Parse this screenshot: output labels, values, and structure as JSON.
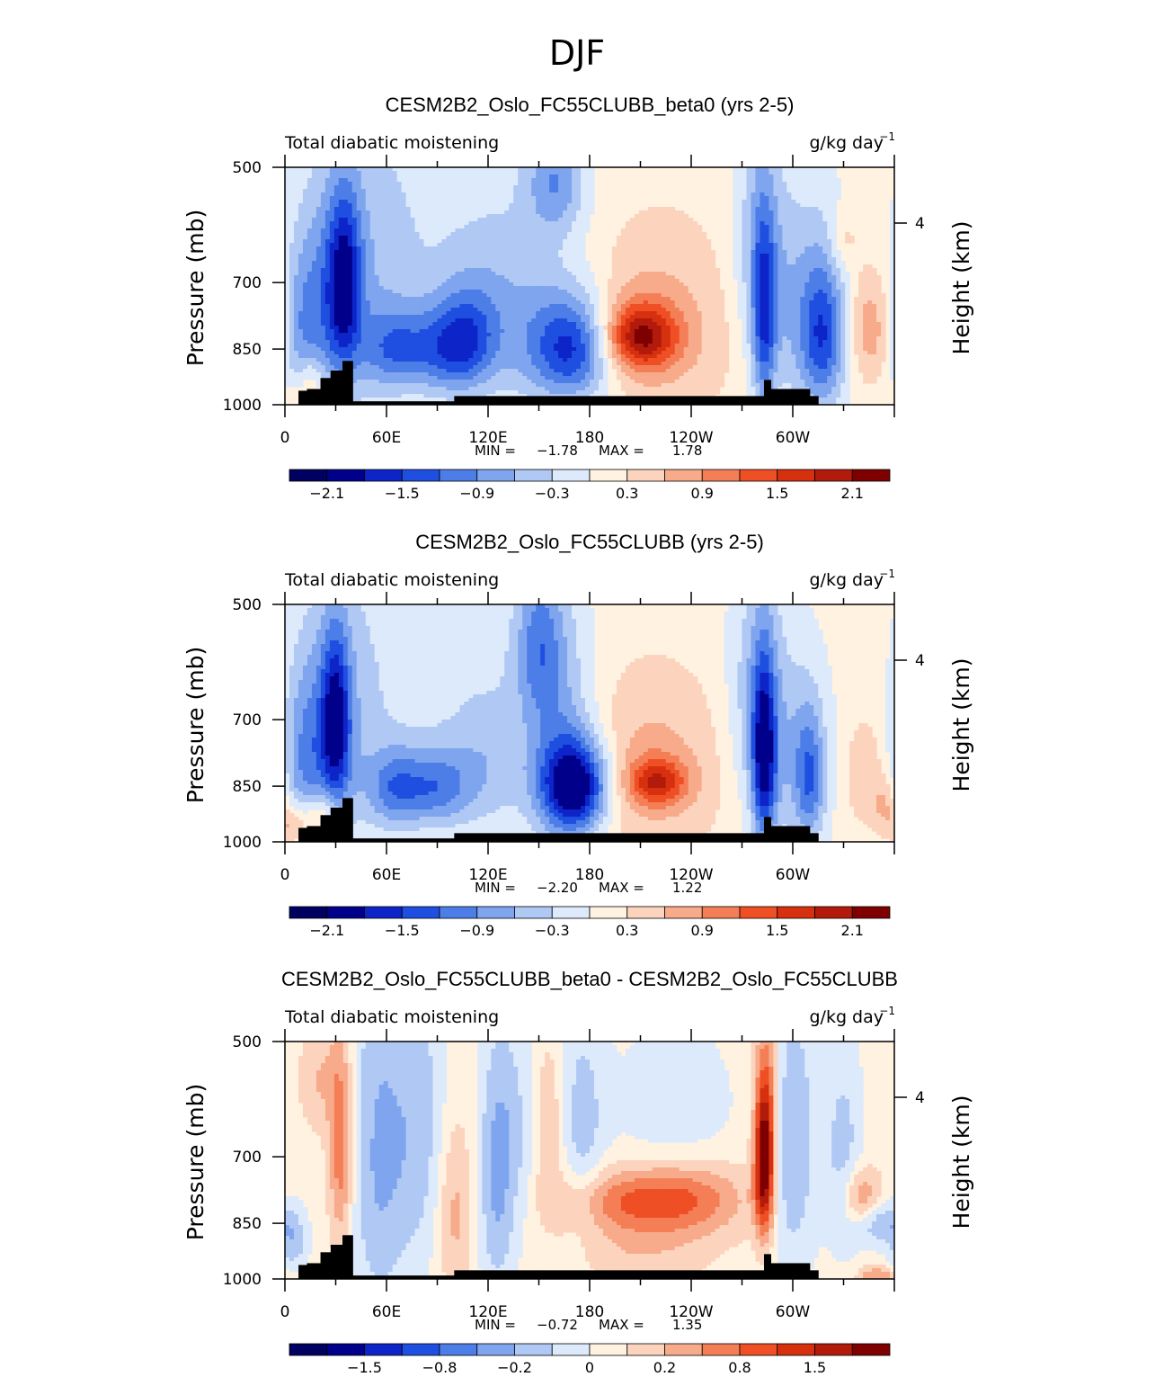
{
  "figure": {
    "title": "DJF"
  },
  "colors": {
    "ocean_bg": "#fff2e1",
    "terrain": "#000000",
    "palette": [
      "#00008b",
      "#0d24c8",
      "#1f4fe0",
      "#4d7ee8",
      "#7fa5ef",
      "#b0c8f4",
      "#ddeafb",
      "#fff2e1",
      "#fcd4be",
      "#f8ab8b",
      "#f47f56",
      "#ef4f24",
      "#d6300f",
      "#b21b0b",
      "#7f0000"
    ]
  },
  "chart_data": [
    {
      "type": "contour",
      "title": "CESM2B2_Oslo_FC55CLUBB_beta0 (yrs 2-5)",
      "left_label": "Total diabatic moistening",
      "units_label": "g/kg day",
      "units_exponent": "−1",
      "ylabel": "Pressure (mb)",
      "ylabel_right": "Height (km)",
      "y_ticks": [
        "500",
        "700",
        "850",
        "1000"
      ],
      "y_tick_values": [
        500,
        700,
        850,
        1000
      ],
      "y_right_ticks": [
        "4"
      ],
      "x_ticks": [
        "0",
        "60E",
        "120E",
        "180",
        "120W",
        "60W"
      ],
      "x_tick_values": [
        0,
        60,
        120,
        180,
        240,
        300
      ],
      "xlim": [
        0,
        360
      ],
      "ylim": [
        1000,
        500
      ],
      "stats_min_label": "MIN =",
      "stats_min": "−1.78",
      "stats_max_label": "MAX =",
      "stats_max": "1.78",
      "colorbar_labels": [
        "−2.1",
        "−1.5",
        "−0.9",
        "−0.3",
        "0.3",
        "0.9",
        "1.5",
        "2.1"
      ],
      "features": [
        {
          "lon": 35,
          "p": 700,
          "v": -1.4,
          "sx": 7,
          "sy": 120
        },
        {
          "lon": 25,
          "p": 750,
          "v": -0.8,
          "sx": 14,
          "sy": 180
        },
        {
          "lon": 10,
          "p": 820,
          "v": -0.6,
          "sx": 8,
          "sy": 150
        },
        {
          "lon": 15,
          "p": 930,
          "v": 0.7,
          "sx": 6,
          "sy": 50
        },
        {
          "lon": 50,
          "p": 660,
          "v": -0.5,
          "sx": 22,
          "sy": 260
        },
        {
          "lon": 65,
          "p": 850,
          "v": -1.0,
          "sx": 14,
          "sy": 70
        },
        {
          "lon": 95,
          "p": 850,
          "v": -1.1,
          "sx": 14,
          "sy": 80
        },
        {
          "lon": 110,
          "p": 820,
          "v": -0.8,
          "sx": 12,
          "sy": 90
        },
        {
          "lon": 135,
          "p": 820,
          "v": -0.5,
          "sx": 20,
          "sy": 130
        },
        {
          "lon": 160,
          "p": 520,
          "v": -0.9,
          "sx": 12,
          "sy": 60
        },
        {
          "lon": 170,
          "p": 850,
          "v": -1.78,
          "sx": 17,
          "sy": 95
        },
        {
          "lon": 120,
          "p": 640,
          "v": -0.4,
          "sx": 40,
          "sy": 160
        },
        {
          "lon": 210,
          "p": 820,
          "v": 1.6,
          "sx": 15,
          "sy": 55
        },
        {
          "lon": 215,
          "p": 800,
          "v": 0.6,
          "sx": 35,
          "sy": 150
        },
        {
          "lon": 283,
          "p": 780,
          "v": -1.3,
          "sx": 5,
          "sy": 160
        },
        {
          "lon": 280,
          "p": 620,
          "v": -0.6,
          "sx": 11,
          "sy": 160
        },
        {
          "lon": 318,
          "p": 820,
          "v": -1.2,
          "sx": 9,
          "sy": 120
        },
        {
          "lon": 305,
          "p": 760,
          "v": -0.7,
          "sx": 18,
          "sy": 180
        },
        {
          "lon": 345,
          "p": 800,
          "v": 0.7,
          "sx": 9,
          "sy": 90
        },
        {
          "lon": 10,
          "p": 985,
          "v": 0.5,
          "sx": 10,
          "sy": 25
        },
        {
          "lon": 330,
          "p": 620,
          "v": 0.4,
          "sx": 6,
          "sy": 40
        }
      ],
      "terrain": [
        [
          8,
          960
        ],
        [
          13,
          955
        ],
        [
          21,
          925
        ],
        [
          27,
          905
        ],
        [
          34,
          880
        ],
        [
          38,
          880
        ],
        [
          40,
          990
        ],
        [
          100,
          975
        ],
        [
          106,
          975
        ],
        [
          112,
          975
        ],
        [
          150,
          975
        ],
        [
          200,
          975
        ],
        [
          283,
          930
        ],
        [
          287,
          955
        ],
        [
          310,
          975
        ],
        [
          315,
          1000
        ]
      ]
    },
    {
      "type": "contour",
      "title": "CESM2B2_Oslo_FC55CLUBB (yrs 2-5)",
      "left_label": "Total diabatic moistening",
      "units_label": "g/kg day",
      "units_exponent": "−1",
      "ylabel": "Pressure (mb)",
      "ylabel_right": "Height (km)",
      "y_ticks": [
        "500",
        "700",
        "850",
        "1000"
      ],
      "y_tick_values": [
        500,
        700,
        850,
        1000
      ],
      "y_right_ticks": [
        "4"
      ],
      "x_ticks": [
        "0",
        "60E",
        "120E",
        "180",
        "120W",
        "60W"
      ],
      "x_tick_values": [
        0,
        60,
        120,
        180,
        240,
        300
      ],
      "xlim": [
        0,
        360
      ],
      "ylim": [
        1000,
        500
      ],
      "stats_min_label": "MIN =",
      "stats_min": "−2.20",
      "stats_max_label": "MAX =",
      "stats_max": "1.22",
      "colorbar_labels": [
        "−2.1",
        "−1.5",
        "−0.9",
        "−0.3",
        "0.3",
        "0.9",
        "1.5",
        "2.1"
      ],
      "features": [
        {
          "lon": 30,
          "p": 700,
          "v": -1.5,
          "sx": 6,
          "sy": 120
        },
        {
          "lon": 22,
          "p": 760,
          "v": -0.8,
          "sx": 14,
          "sy": 180
        },
        {
          "lon": 10,
          "p": 800,
          "v": -0.5,
          "sx": 8,
          "sy": 160
        },
        {
          "lon": 20,
          "p": 930,
          "v": 0.9,
          "sx": 8,
          "sy": 45
        },
        {
          "lon": 45,
          "p": 650,
          "v": -0.4,
          "sx": 20,
          "sy": 250
        },
        {
          "lon": 65,
          "p": 855,
          "v": -1.0,
          "sx": 12,
          "sy": 70
        },
        {
          "lon": 90,
          "p": 855,
          "v": -1.0,
          "sx": 14,
          "sy": 70
        },
        {
          "lon": 120,
          "p": 820,
          "v": -0.5,
          "sx": 18,
          "sy": 110
        },
        {
          "lon": 150,
          "p": 560,
          "v": -0.9,
          "sx": 10,
          "sy": 90
        },
        {
          "lon": 163,
          "p": 760,
          "v": -0.7,
          "sx": 14,
          "sy": 210
        },
        {
          "lon": 172,
          "p": 850,
          "v": -2.2,
          "sx": 14,
          "sy": 80
        },
        {
          "lon": 115,
          "p": 650,
          "v": -0.3,
          "sx": 35,
          "sy": 150
        },
        {
          "lon": 220,
          "p": 840,
          "v": 1.2,
          "sx": 12,
          "sy": 40
        },
        {
          "lon": 215,
          "p": 810,
          "v": 0.6,
          "sx": 30,
          "sy": 140
        },
        {
          "lon": 283,
          "p": 780,
          "v": -1.8,
          "sx": 5,
          "sy": 150
        },
        {
          "lon": 278,
          "p": 640,
          "v": -0.6,
          "sx": 12,
          "sy": 170
        },
        {
          "lon": 310,
          "p": 830,
          "v": -1.0,
          "sx": 6,
          "sy": 110
        },
        {
          "lon": 300,
          "p": 780,
          "v": -0.6,
          "sx": 16,
          "sy": 170
        },
        {
          "lon": 342,
          "p": 820,
          "v": 0.4,
          "sx": 9,
          "sy": 90
        },
        {
          "lon": 5,
          "p": 960,
          "v": 0.7,
          "sx": 6,
          "sy": 40
        },
        {
          "lon": 355,
          "p": 900,
          "v": 0.5,
          "sx": 6,
          "sy": 50
        }
      ],
      "terrain": [
        [
          8,
          960
        ],
        [
          13,
          955
        ],
        [
          21,
          925
        ],
        [
          27,
          905
        ],
        [
          34,
          880
        ],
        [
          38,
          880
        ],
        [
          40,
          990
        ],
        [
          100,
          975
        ],
        [
          106,
          975
        ],
        [
          112,
          975
        ],
        [
          150,
          975
        ],
        [
          200,
          975
        ],
        [
          283,
          930
        ],
        [
          287,
          955
        ],
        [
          310,
          975
        ],
        [
          315,
          1000
        ]
      ]
    },
    {
      "type": "contour",
      "title": "CESM2B2_Oslo_FC55CLUBB_beta0 - CESM2B2_Oslo_FC55CLUBB",
      "left_label": "Total diabatic moistening",
      "units_label": "g/kg day",
      "units_exponent": "−1",
      "ylabel": "Pressure (mb)",
      "ylabel_right": "Height (km)",
      "y_ticks": [
        "500",
        "700",
        "850",
        "1000"
      ],
      "y_tick_values": [
        500,
        700,
        850,
        1000
      ],
      "y_right_ticks": [
        "4"
      ],
      "x_ticks": [
        "0",
        "60E",
        "120E",
        "180",
        "120W",
        "60W"
      ],
      "x_tick_values": [
        0,
        60,
        120,
        180,
        240,
        300
      ],
      "xlim": [
        0,
        360
      ],
      "ylim": [
        1000,
        500
      ],
      "stats_min_label": "MIN =",
      "stats_min": "−0.72",
      "stats_max_label": "MAX =",
      "stats_max": "1.35",
      "colorbar_labels": [
        "−1.5",
        "−0.8",
        "−0.2",
        "0",
        "0.2",
        "0.8",
        "1.5"
      ],
      "features": [
        {
          "lon": 33,
          "p": 680,
          "v": 0.7,
          "sx": 5,
          "sy": 150
        },
        {
          "lon": 20,
          "p": 560,
          "v": 0.3,
          "sx": 8,
          "sy": 60
        },
        {
          "lon": 55,
          "p": 700,
          "v": -0.5,
          "sx": 12,
          "sy": 280
        },
        {
          "lon": 80,
          "p": 650,
          "v": -0.4,
          "sx": 12,
          "sy": 220
        },
        {
          "lon": 100,
          "p": 820,
          "v": 0.4,
          "sx": 8,
          "sy": 150
        },
        {
          "lon": 125,
          "p": 760,
          "v": -0.5,
          "sx": 8,
          "sy": 200
        },
        {
          "lon": 140,
          "p": 650,
          "v": -0.3,
          "sx": 12,
          "sy": 150
        },
        {
          "lon": 155,
          "p": 640,
          "v": 0.4,
          "sx": 8,
          "sy": 120
        },
        {
          "lon": 175,
          "p": 640,
          "v": -0.4,
          "sx": 10,
          "sy": 150
        },
        {
          "lon": 200,
          "p": 790,
          "v": 0.5,
          "sx": 30,
          "sy": 50
        },
        {
          "lon": 240,
          "p": 790,
          "v": 0.5,
          "sx": 25,
          "sy": 60
        },
        {
          "lon": 210,
          "p": 900,
          "v": 0.3,
          "sx": 30,
          "sy": 80
        },
        {
          "lon": 230,
          "p": 600,
          "v": -0.25,
          "sx": 25,
          "sy": 100
        },
        {
          "lon": 283,
          "p": 720,
          "v": 1.35,
          "sx": 4,
          "sy": 110
        },
        {
          "lon": 285,
          "p": 600,
          "v": 0.6,
          "sx": 5,
          "sy": 120
        },
        {
          "lon": 300,
          "p": 680,
          "v": -0.5,
          "sx": 10,
          "sy": 200
        },
        {
          "lon": 330,
          "p": 700,
          "v": -0.4,
          "sx": 8,
          "sy": 150
        },
        {
          "lon": 340,
          "p": 790,
          "v": 0.6,
          "sx": 8,
          "sy": 50
        },
        {
          "lon": 350,
          "p": 850,
          "v": -0.5,
          "sx": 10,
          "sy": 40
        },
        {
          "lon": 5,
          "p": 900,
          "v": -0.4,
          "sx": 6,
          "sy": 60
        },
        {
          "lon": 350,
          "p": 990,
          "v": 0.5,
          "sx": 8,
          "sy": 20
        }
      ],
      "terrain": [
        [
          8,
          960
        ],
        [
          13,
          955
        ],
        [
          21,
          925
        ],
        [
          27,
          905
        ],
        [
          34,
          880
        ],
        [
          38,
          880
        ],
        [
          40,
          990
        ],
        [
          100,
          975
        ],
        [
          106,
          975
        ],
        [
          112,
          975
        ],
        [
          150,
          975
        ],
        [
          200,
          975
        ],
        [
          283,
          930
        ],
        [
          287,
          955
        ],
        [
          310,
          975
        ],
        [
          315,
          1000
        ]
      ]
    }
  ]
}
